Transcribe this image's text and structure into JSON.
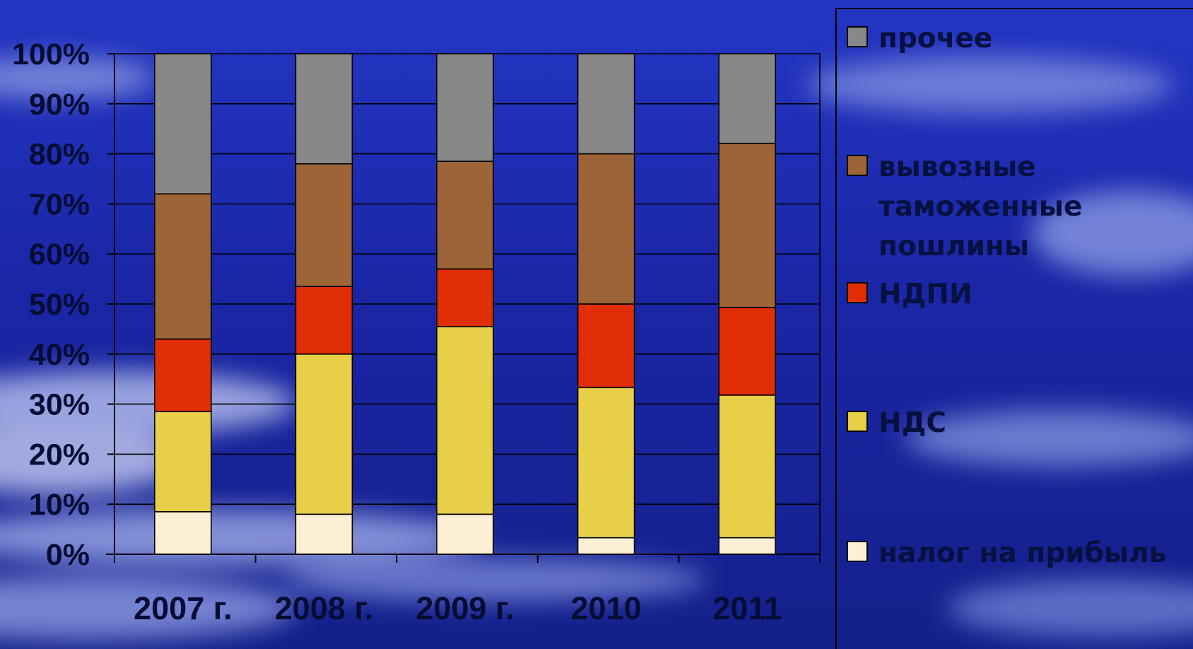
{
  "chart_data": {
    "type": "bar",
    "stacked": true,
    "percent": true,
    "categories": [
      "2007 г.",
      "2008 г.",
      "2009 г.",
      "2010",
      "2011"
    ],
    "series": [
      {
        "name": "налог на прибыль",
        "color": "#fcefd4",
        "values": [
          8.5,
          8,
          8,
          3.3,
          3.3
        ]
      },
      {
        "name": "НДС",
        "color": "#e8cf48",
        "values": [
          20,
          32,
          37.5,
          30,
          28.5
        ]
      },
      {
        "name": "НДПИ",
        "color": "#e12e04",
        "values": [
          14.5,
          13.5,
          11.5,
          16.7,
          17.5
        ]
      },
      {
        "name": "вывозные таможенные пошлины",
        "label_lines": [
          "вывозные",
          "таможенные",
          "пошлины"
        ],
        "color": "#9c6437",
        "values": [
          29,
          24.5,
          21.5,
          30,
          32.8
        ]
      },
      {
        "name": "прочее",
        "color": "#888888",
        "values": [
          28,
          22,
          21.5,
          20,
          17.9
        ]
      }
    ],
    "yticks": [
      "0%",
      "10%",
      "20%",
      "30%",
      "40%",
      "50%",
      "60%",
      "70%",
      "80%",
      "90%",
      "100%"
    ],
    "ylim": [
      0,
      100
    ],
    "grid": true,
    "legend": "right",
    "title": "",
    "xlabel": "",
    "ylabel": ""
  }
}
